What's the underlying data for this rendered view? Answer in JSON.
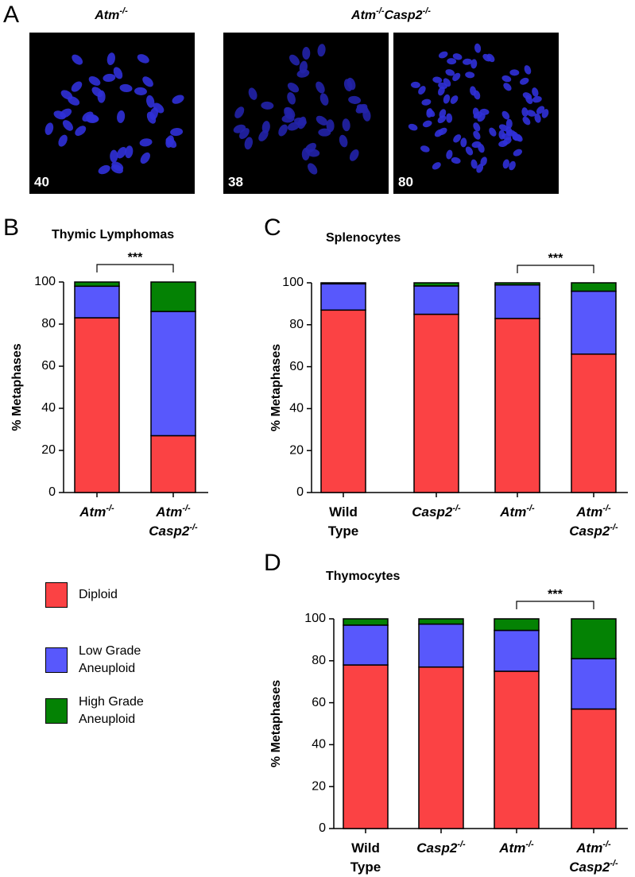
{
  "panel_a": {
    "label": "A",
    "groups": [
      {
        "title": [
          "Atm",
          "-/-"
        ]
      },
      {
        "title": [
          "Atm",
          "-/-",
          "Casp2",
          "-/-"
        ]
      }
    ],
    "counts": [
      "40",
      "38",
      "80"
    ]
  },
  "chart_data": [
    {
      "type": "stacked_bar",
      "panel": "B",
      "title": "Thymic Lymphomas",
      "ylabel": "% Metaphases",
      "categories": [
        [
          [
            "Atm",
            "-/-"
          ]
        ],
        [
          [
            "Atm",
            "-/-"
          ],
          [
            "Casp2",
            "-/-"
          ]
        ]
      ],
      "series": [
        {
          "name": "Diploid",
          "color": "#fb4244",
          "values": [
            83,
            27
          ]
        },
        {
          "name": "Low Grade Aneuploid",
          "color": "#5858fc",
          "values": [
            15,
            59
          ]
        },
        {
          "name": "High Grade Aneuploid",
          "color": "#048204",
          "values": [
            2,
            14
          ]
        }
      ],
      "ylim": [
        0,
        100
      ],
      "yticks": [
        0,
        20,
        40,
        60,
        80,
        100
      ],
      "significance": {
        "label": "***",
        "between": [
          0,
          1
        ]
      }
    },
    {
      "type": "stacked_bar",
      "panel": "C",
      "title": "Splenocytes",
      "ylabel": "% Metaphases",
      "categories": [
        [
          [
            "Wild"
          ],
          [
            "Type"
          ]
        ],
        [
          [
            "Casp2",
            "-/-"
          ]
        ],
        [
          [
            "Atm",
            "-/-"
          ]
        ],
        [
          [
            "Atm",
            "-/-"
          ],
          [
            "Casp2",
            "-/-"
          ]
        ]
      ],
      "series": [
        {
          "name": "Diploid",
          "color": "#fb4244",
          "values": [
            87,
            85,
            83,
            66
          ]
        },
        {
          "name": "Low Grade Aneuploid",
          "color": "#5858fc",
          "values": [
            12.5,
            13.5,
            16,
            30
          ]
        },
        {
          "name": "High Grade Aneuploid",
          "color": "#048204",
          "values": [
            0.5,
            1.5,
            1,
            4
          ]
        }
      ],
      "ylim": [
        0,
        100
      ],
      "yticks": [
        0,
        20,
        40,
        60,
        80,
        100
      ],
      "significance": {
        "label": "***",
        "between": [
          2,
          3
        ]
      }
    },
    {
      "type": "stacked_bar",
      "panel": "D",
      "title": "Thymocytes",
      "ylabel": "% Metaphases",
      "categories": [
        [
          [
            "Wild"
          ],
          [
            "Type"
          ]
        ],
        [
          [
            "Casp2",
            "-/-"
          ]
        ],
        [
          [
            "Atm",
            "-/-"
          ]
        ],
        [
          [
            "Atm",
            "-/-"
          ],
          [
            "Casp2",
            "-/-"
          ]
        ]
      ],
      "series": [
        {
          "name": "Diploid",
          "color": "#fb4244",
          "values": [
            78,
            77,
            75,
            57
          ]
        },
        {
          "name": "Low Grade Aneuploid",
          "color": "#5858fc",
          "values": [
            19,
            20.5,
            19.5,
            24
          ]
        },
        {
          "name": "High Grade Aneuploid",
          "color": "#048204",
          "values": [
            3,
            2.5,
            5.5,
            19
          ]
        }
      ],
      "ylim": [
        0,
        100
      ],
      "yticks": [
        0,
        20,
        40,
        60,
        80,
        100
      ],
      "significance": {
        "label": "***",
        "between": [
          2,
          3
        ]
      }
    }
  ]
}
